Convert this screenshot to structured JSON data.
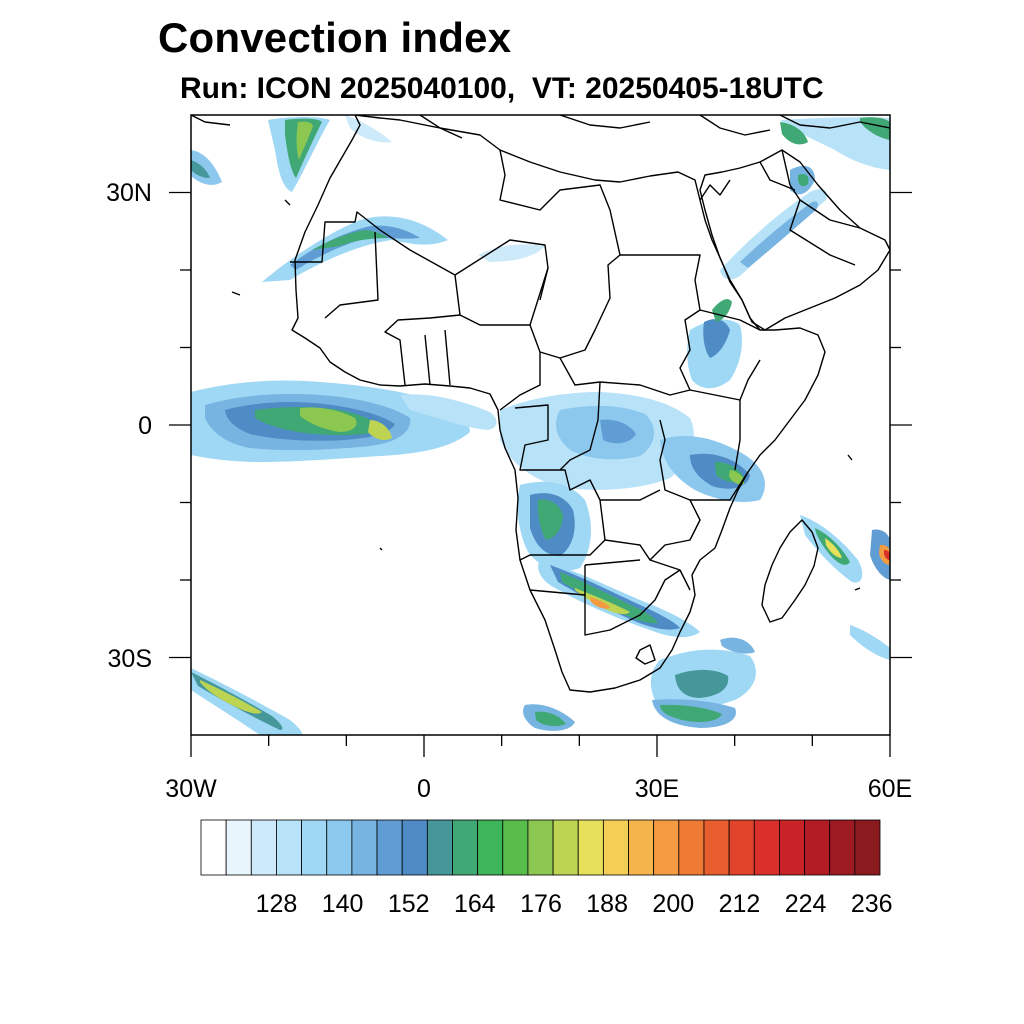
{
  "title": "Convection index",
  "subtitle": "Run: ICON 2025040100,  VT: 20250405-18UTC",
  "map": {
    "region": "Africa",
    "lon_range": [
      -30,
      60
    ],
    "lat_range": [
      -40,
      40
    ],
    "x_tick_labels": [
      "30W",
      "0",
      "30E",
      "60E"
    ],
    "y_tick_labels": [
      "30N",
      "0",
      "30S"
    ],
    "x_tick_values": [
      -30,
      0,
      30,
      60
    ],
    "y_tick_values": [
      30,
      0,
      -30
    ]
  },
  "colorbar": {
    "labels": [
      "128",
      "140",
      "152",
      "164",
      "176",
      "188",
      "200",
      "212",
      "224",
      "236"
    ],
    "colors": [
      "#ffffff",
      "#e8f5fd",
      "#cdeafa",
      "#b7e2f8",
      "#9fd8f5",
      "#8cc8ee",
      "#77b4e2",
      "#5f9dd4",
      "#4f8cc6",
      "#45979a",
      "#3fa874",
      "#3db55b",
      "#58bd4b",
      "#8cc751",
      "#bcd452",
      "#e6e05a",
      "#f5cf55",
      "#f6b54c",
      "#f49a40",
      "#ef7a33",
      "#e85d2d",
      "#e2432b",
      "#d9302b",
      "#c92327",
      "#b31c25",
      "#9e1a22",
      "#8b1a1e"
    ]
  }
}
